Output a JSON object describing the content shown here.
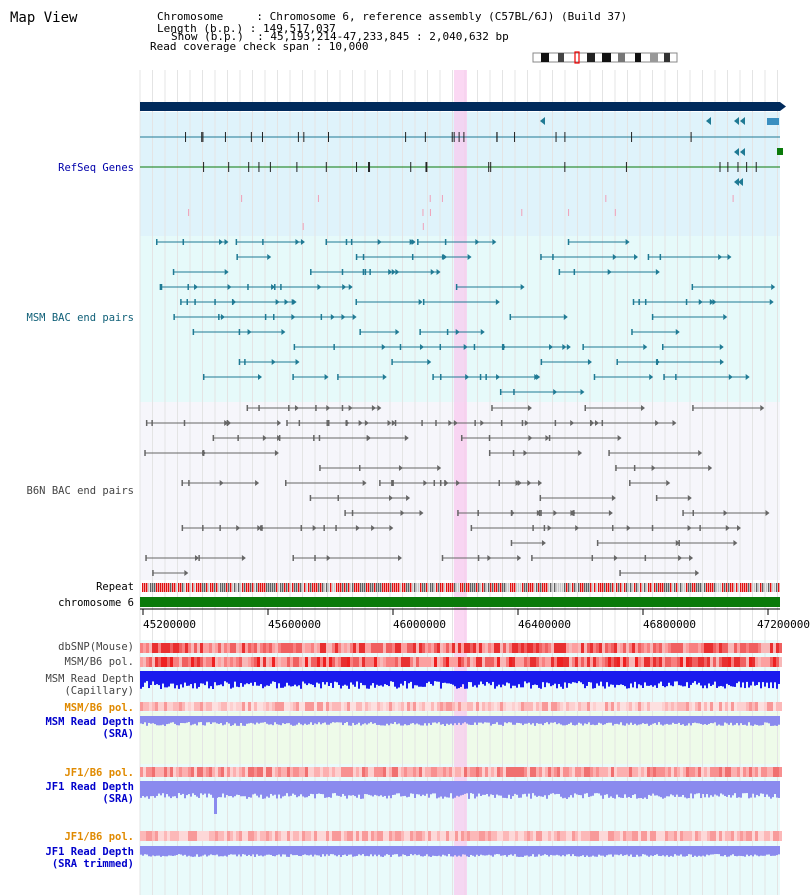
{
  "header": {
    "title": "Map View",
    "lines": [
      "Chromosome     : Chromosome 6, reference assembly (C57BL/6J) (Build 37)",
      "Length (b.p.) : 149,517,037",
      "Show (b.p.)  : 45,193,214-47,233,845 : 2,040,632 bp",
      "Read coverage check span : 10,000"
    ]
  },
  "tracks": {
    "refseq": "RefSeq Genes",
    "msm_bac": "MSM BAC end pairs",
    "b6n_bac": "B6N BAC end pairs",
    "repeat": "Repeat",
    "chromosome": "chromosome 6",
    "dbsnp": "dbSNP(Mouse)",
    "msm_b6_pol": "MSM/B6 pol.",
    "msm_depth_cap_1": "MSM Read Depth",
    "msm_depth_cap_2": "(Capillary)",
    "msm_b6_pol2": "MSM/B6 pol.",
    "msm_depth_sra_1": "MSM Read Depth",
    "msm_depth_sra_2": "(SRA)",
    "jf1_b6_pol": "JF1/B6 pol.",
    "jf1_depth_sra_1": "JF1 Read Depth",
    "jf1_depth_sra_2": "(SRA)",
    "jf1_b6_pol2": "JF1/B6 pol.",
    "jf1_depth_trim_1": "JF1 Read Depth",
    "jf1_depth_trim_2": "(SRA trimmed)"
  },
  "axis": {
    "ticks": [
      "45200000",
      "45600000",
      "46000000",
      "46400000",
      "46800000",
      "47200000"
    ]
  },
  "colors": {
    "navy": "#002a5c",
    "refseq_bg": "#dff3fb",
    "msm_bg": "#e6fafa",
    "b6n_bg": "#f6f6fb",
    "teal": "#1f7a94",
    "gray": "#666666",
    "green": "#0a7a0a",
    "depth_blue": "#1a1aee",
    "depth_light": "#8a8aee"
  }
}
